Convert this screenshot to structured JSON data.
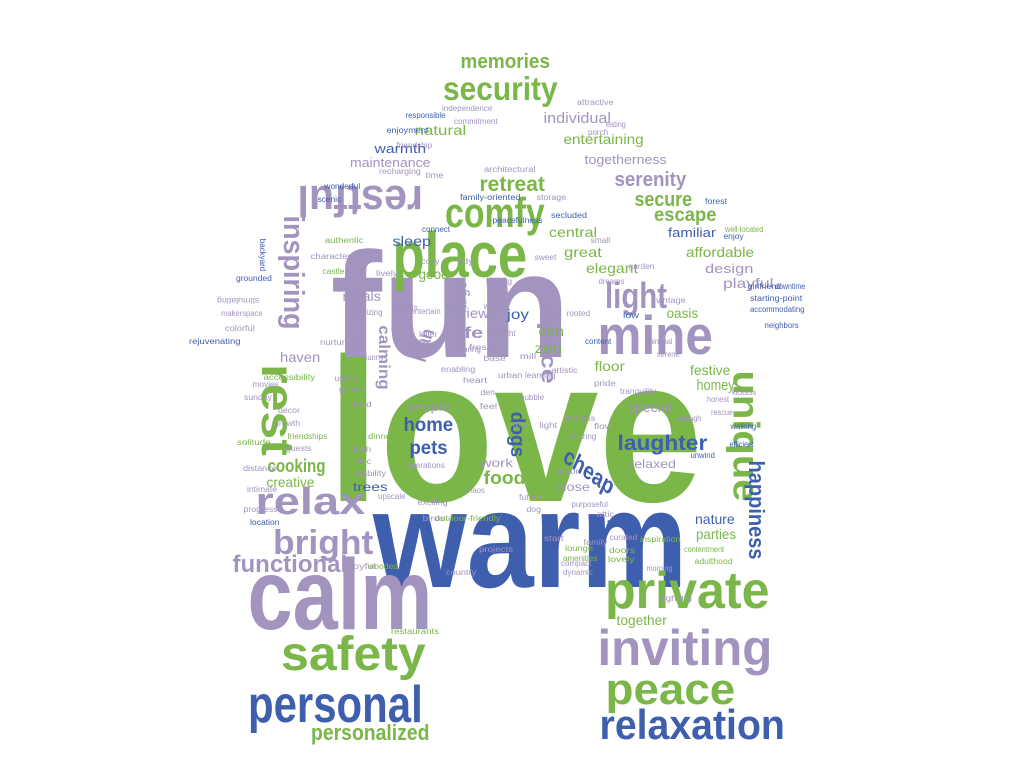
{
  "colors": {
    "green": "#7AB648",
    "purple": "#A393BF",
    "blue": "#3D5FAE",
    "background": "#FFFFFF"
  },
  "wordcloud": {
    "shape": "house",
    "words": [
      {
        "text": "love",
        "color": "green"
      },
      {
        "text": "warm",
        "color": "blue"
      },
      {
        "text": "fun",
        "color": "purple"
      },
      {
        "text": "calm",
        "color": "purple"
      },
      {
        "text": "place",
        "color": "green"
      },
      {
        "text": "mine",
        "color": "purple"
      },
      {
        "text": "private",
        "color": "green"
      },
      {
        "text": "inviting",
        "color": "purple"
      },
      {
        "text": "peace",
        "color": "green"
      },
      {
        "text": "relaxation",
        "color": "blue"
      },
      {
        "text": "personal",
        "color": "blue"
      },
      {
        "text": "safety",
        "color": "green"
      },
      {
        "text": "personalized",
        "color": "green"
      },
      {
        "text": "comfy",
        "color": "green"
      },
      {
        "text": "restful",
        "color": "purple"
      },
      {
        "text": "security",
        "color": "green"
      },
      {
        "text": "memories",
        "color": "green"
      },
      {
        "text": "light",
        "color": "purple"
      },
      {
        "text": "unique",
        "color": "green"
      },
      {
        "text": "rest",
        "color": "green"
      },
      {
        "text": "relax",
        "color": "purple"
      },
      {
        "text": "bright",
        "color": "purple"
      },
      {
        "text": "functional",
        "color": "purple"
      },
      {
        "text": "happiness",
        "color": "blue"
      },
      {
        "text": "inspiring",
        "color": "purple"
      },
      {
        "text": "retreat",
        "color": "green"
      },
      {
        "text": "serenity",
        "color": "purple"
      },
      {
        "text": "secure",
        "color": "green"
      },
      {
        "text": "escape",
        "color": "green"
      },
      {
        "text": "space",
        "color": "purple"
      },
      {
        "text": "home",
        "color": "blue"
      },
      {
        "text": "pets",
        "color": "blue"
      },
      {
        "text": "laughter",
        "color": "blue"
      },
      {
        "text": "cheap",
        "color": "blue"
      },
      {
        "text": "dogs",
        "color": "blue"
      },
      {
        "text": "food",
        "color": "green"
      },
      {
        "text": "cooking",
        "color": "green"
      },
      {
        "text": "calming",
        "color": "purple"
      },
      {
        "text": "life",
        "color": "purple"
      },
      {
        "text": "oasis",
        "color": "green"
      },
      {
        "text": "festive",
        "color": "green"
      },
      {
        "text": "homey",
        "color": "green"
      },
      {
        "text": "special",
        "color": "purple"
      },
      {
        "text": "nature",
        "color": "blue"
      },
      {
        "text": "parties",
        "color": "green"
      },
      {
        "text": "together",
        "color": "green"
      },
      {
        "text": "creative",
        "color": "green"
      },
      {
        "text": "haven",
        "color": "purple"
      },
      {
        "text": "floor",
        "color": "green"
      },
      {
        "text": "zen",
        "color": "green"
      },
      {
        "text": "joy",
        "color": "blue"
      },
      {
        "text": "can",
        "color": "green"
      },
      {
        "text": "view",
        "color": "purple"
      },
      {
        "text": "large",
        "color": "purple"
      },
      {
        "text": "plan",
        "color": "purple"
      },
      {
        "text": "meals",
        "color": "purple"
      },
      {
        "text": "good",
        "color": "green"
      },
      {
        "text": "sleep",
        "color": "blue"
      },
      {
        "text": "central",
        "color": "green"
      },
      {
        "text": "great",
        "color": "green"
      },
      {
        "text": "elegant",
        "color": "green"
      },
      {
        "text": "familiar",
        "color": "blue"
      },
      {
        "text": "affordable",
        "color": "green"
      },
      {
        "text": "design",
        "color": "purple"
      },
      {
        "text": "playful",
        "color": "purple"
      },
      {
        "text": "maintenance",
        "color": "purple"
      },
      {
        "text": "warmth",
        "color": "blue"
      },
      {
        "text": "natural",
        "color": "green"
      },
      {
        "text": "individual",
        "color": "purple"
      },
      {
        "text": "entertaining",
        "color": "green"
      },
      {
        "text": "togetherness",
        "color": "purple"
      },
      {
        "text": "people",
        "color": "purple"
      },
      {
        "text": "work",
        "color": "purple"
      },
      {
        "text": "close",
        "color": "purple"
      },
      {
        "text": "relaxed",
        "color": "purple"
      },
      {
        "text": "trees",
        "color": "blue"
      },
      {
        "text": "independence",
        "color": "purple"
      },
      {
        "text": "responsible",
        "color": "blue"
      },
      {
        "text": "commitment",
        "color": "purple"
      },
      {
        "text": "enjoyment",
        "color": "blue"
      },
      {
        "text": "friendship",
        "color": "purple"
      },
      {
        "text": "recharging",
        "color": "purple"
      },
      {
        "text": "time",
        "color": "purple"
      },
      {
        "text": "wonderful",
        "color": "blue"
      },
      {
        "text": "scenic",
        "color": "blue"
      },
      {
        "text": "authentic",
        "color": "green"
      },
      {
        "text": "character",
        "color": "purple"
      },
      {
        "text": "castle",
        "color": "green"
      },
      {
        "text": "grounded",
        "color": "blue"
      },
      {
        "text": "backyard",
        "color": "blue"
      },
      {
        "text": "colorful",
        "color": "purple"
      },
      {
        "text": "rejuvenating",
        "color": "blue"
      },
      {
        "text": "makerspace",
        "color": "purple"
      },
      {
        "text": "stimulating",
        "color": "purple"
      },
      {
        "text": "accessibility",
        "color": "green"
      },
      {
        "text": "movies",
        "color": "purple"
      },
      {
        "text": "sunday",
        "color": "purple"
      },
      {
        "text": "decor",
        "color": "purple"
      },
      {
        "text": "growth",
        "color": "purple"
      },
      {
        "text": "friendships",
        "color": "green"
      },
      {
        "text": "solitude",
        "color": "green"
      },
      {
        "text": "guests",
        "color": "purple"
      },
      {
        "text": "distance",
        "color": "purple"
      },
      {
        "text": "intimate",
        "color": "purple"
      },
      {
        "text": "progress",
        "color": "purple"
      },
      {
        "text": "location",
        "color": "blue"
      },
      {
        "text": "joyful",
        "color": "purple"
      },
      {
        "text": "wooded",
        "color": "green"
      },
      {
        "text": "country",
        "color": "purple"
      },
      {
        "text": "restaurants",
        "color": "green"
      },
      {
        "text": "nurturing",
        "color": "purple"
      },
      {
        "text": "useful",
        "color": "purple"
      },
      {
        "text": "games",
        "color": "purple"
      },
      {
        "text": "loud",
        "color": "purple"
      },
      {
        "text": "lush",
        "color": "purple"
      },
      {
        "text": "chic",
        "color": "purple"
      },
      {
        "text": "stability",
        "color": "purple"
      },
      {
        "text": "upscale",
        "color": "purple"
      },
      {
        "text": "exciting",
        "color": "purple"
      },
      {
        "text": "birds",
        "color": "purple"
      },
      {
        "text": "outdoor-friendly",
        "color": "green"
      },
      {
        "text": "projects",
        "color": "purple"
      },
      {
        "text": "operations",
        "color": "purple"
      },
      {
        "text": "dinner",
        "color": "green"
      },
      {
        "text": "heart",
        "color": "purple"
      },
      {
        "text": "urban",
        "color": "purple"
      },
      {
        "text": "feel",
        "color": "purple"
      },
      {
        "text": "den",
        "color": "purple"
      },
      {
        "text": "fresh",
        "color": "purple"
      },
      {
        "text": "base",
        "color": "purple"
      },
      {
        "text": "mill",
        "color": "purple"
      },
      {
        "text": "enabling",
        "color": "purple"
      },
      {
        "text": "architectural",
        "color": "purple"
      },
      {
        "text": "family-oriented",
        "color": "blue"
      },
      {
        "text": "storage",
        "color": "purple"
      },
      {
        "text": "secluded",
        "color": "blue"
      },
      {
        "text": "peacefulness",
        "color": "blue"
      },
      {
        "text": "connect",
        "color": "blue"
      },
      {
        "text": "tidy",
        "color": "purple"
      },
      {
        "text": "cozy",
        "color": "purple"
      },
      {
        "text": "small",
        "color": "purple"
      },
      {
        "text": "sweet",
        "color": "purple"
      },
      {
        "text": "wi-fi",
        "color": "purple"
      },
      {
        "text": "resting",
        "color": "purple"
      },
      {
        "text": "dreams",
        "color": "purple"
      },
      {
        "text": "garden",
        "color": "purple"
      },
      {
        "text": "low",
        "color": "blue"
      },
      {
        "text": "vintage",
        "color": "purple"
      },
      {
        "text": "rooted",
        "color": "purple"
      },
      {
        "text": "content",
        "color": "blue"
      },
      {
        "text": "minimal",
        "color": "purple"
      },
      {
        "text": "serene",
        "color": "purple"
      },
      {
        "text": "pride",
        "color": "purple"
      },
      {
        "text": "tranquility",
        "color": "purple"
      },
      {
        "text": "flow",
        "color": "purple"
      },
      {
        "text": "sharing",
        "color": "purple"
      },
      {
        "text": "labor",
        "color": "purple"
      },
      {
        "text": "future",
        "color": "purple"
      },
      {
        "text": "dog",
        "color": "purple"
      },
      {
        "text": "start",
        "color": "purple"
      },
      {
        "text": "lounge",
        "color": "green"
      },
      {
        "text": "amenities",
        "color": "green"
      },
      {
        "text": "doors",
        "color": "green"
      },
      {
        "text": "lovely",
        "color": "green"
      },
      {
        "text": "compact",
        "color": "purple"
      },
      {
        "text": "dynamic",
        "color": "purple"
      },
      {
        "text": "curated",
        "color": "purple"
      },
      {
        "text": "friendly",
        "color": "blue"
      },
      {
        "text": "opening",
        "color": "blue"
      },
      {
        "text": "inspiration",
        "color": "green"
      },
      {
        "text": "contentment",
        "color": "green"
      },
      {
        "text": "adulthood",
        "color": "green"
      },
      {
        "text": "lighting",
        "color": "purple"
      },
      {
        "text": "morning",
        "color": "purple"
      },
      {
        "text": "honest",
        "color": "purple"
      },
      {
        "text": "walking",
        "color": "blue"
      },
      {
        "text": "efficient",
        "color": "blue"
      },
      {
        "text": "unwind",
        "color": "blue"
      },
      {
        "text": "kickass",
        "color": "purple"
      },
      {
        "text": "rescue",
        "color": "purple"
      },
      {
        "text": "enough",
        "color": "purple"
      },
      {
        "text": "starting-point",
        "color": "blue"
      },
      {
        "text": "accommodating",
        "color": "blue"
      },
      {
        "text": "neighbors",
        "color": "blue"
      },
      {
        "text": "downtime",
        "color": "blue"
      },
      {
        "text": "girlfriend",
        "color": "blue"
      },
      {
        "text": "enjoy",
        "color": "blue"
      },
      {
        "text": "well-located",
        "color": "green"
      },
      {
        "text": "forest",
        "color": "blue"
      },
      {
        "text": "attractive",
        "color": "purple"
      },
      {
        "text": "eating",
        "color": "purple"
      },
      {
        "text": "porch",
        "color": "purple"
      },
      {
        "text": "reflects",
        "color": "purple"
      },
      {
        "text": "lively",
        "color": "purple"
      },
      {
        "text": "energizing",
        "color": "purple"
      },
      {
        "text": "entertain",
        "color": "purple"
      },
      {
        "text": "want",
        "color": "purple"
      },
      {
        "text": "killer",
        "color": "purple"
      },
      {
        "text": "learning",
        "color": "purple"
      },
      {
        "text": "sunny",
        "color": "purple"
      },
      {
        "text": "artistic",
        "color": "purple"
      },
      {
        "text": "fortress",
        "color": "purple"
      },
      {
        "text": "bubble",
        "color": "purple"
      },
      {
        "text": "light",
        "color": "purple"
      },
      {
        "text": "airy",
        "color": "purple"
      },
      {
        "text": "purposeful",
        "color": "purple"
      },
      {
        "text": "chaos",
        "color": "purple"
      },
      {
        "text": "caring",
        "color": "purple"
      },
      {
        "text": "sunlight",
        "color": "purple"
      },
      {
        "text": "attic",
        "color": "purple"
      },
      {
        "text": "family",
        "color": "purple"
      }
    ]
  }
}
